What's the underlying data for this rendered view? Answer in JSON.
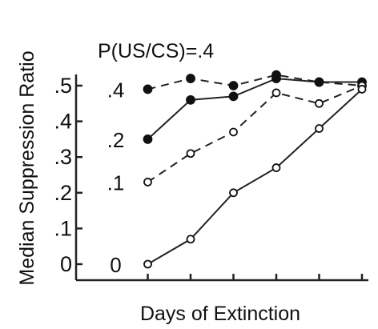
{
  "chart_data": {
    "type": "line",
    "title": "P(US/CS)=.4",
    "xlabel": "Days of Extinction",
    "ylabel": "Median Suppression Ratio",
    "x": [
      1,
      2,
      3,
      4,
      5,
      6
    ],
    "xlim": [
      0,
      6
    ],
    "ylim": [
      0,
      0.55
    ],
    "yticks": [
      0,
      0.1,
      0.2,
      0.3,
      0.4,
      0.5
    ],
    "ytick_labels": [
      "0",
      ".1",
      ".2",
      ".3",
      ".4",
      ".5"
    ],
    "grid": false,
    "series": [
      {
        "name": ".4",
        "values": [
          0.49,
          0.52,
          0.5,
          0.53,
          0.51,
          0.5
        ],
        "marker": "filled",
        "linestyle": "dashed"
      },
      {
        "name": ".2",
        "values": [
          0.35,
          0.46,
          0.47,
          0.52,
          0.51,
          0.51
        ],
        "marker": "filled",
        "linestyle": "solid"
      },
      {
        "name": ".1",
        "values": [
          0.23,
          0.31,
          0.37,
          0.48,
          0.45,
          0.5
        ],
        "marker": "open",
        "linestyle": "dashed"
      },
      {
        "name": "0",
        "values": [
          0.0,
          0.07,
          0.2,
          0.27,
          0.38,
          0.49
        ],
        "marker": "open",
        "linestyle": "solid"
      }
    ]
  }
}
